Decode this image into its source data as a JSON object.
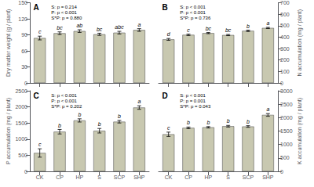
{
  "chart_data": [
    {
      "type": "bar",
      "title": "A",
      "annotations": [
        "S: p = 0.214\nP: p < 0.001\nS*P: p = 0.880"
      ],
      "ylabel": "Dry matter weight (g / plant)",
      "categories": [
        "CK",
        "CP",
        "HP",
        "S",
        "SCP",
        "SHP"
      ],
      "values": [
        84,
        93,
        97,
        91,
        94,
        99
      ],
      "errors": [
        3.5,
        2.5,
        2.5,
        2.0,
        2.5,
        2.5
      ],
      "letters": [
        "c",
        "bc",
        "ab",
        "bc",
        "abc",
        "a"
      ],
      "color": "#c8c8b0",
      "ylim": [
        0,
        150
      ],
      "yticks": [
        0,
        30,
        60,
        90,
        120,
        150
      ],
      "grid": false,
      "tick_labels": "y"
    },
    {
      "type": "bar",
      "title": "B",
      "annotations": [
        "S: p < 0.001\nP: p < 0.001\nS*P: p = 0.736"
      ],
      "ylabel": "N accumulation (mg / plant)",
      "categories": [
        "CK",
        "CP",
        "HP",
        "S",
        "SCP",
        "SHP"
      ],
      "values": [
        380,
        420,
        435,
        418,
        455,
        480
      ],
      "errors": [
        8,
        6,
        5,
        5,
        6,
        5
      ],
      "letters": [
        "d",
        "c",
        "bc",
        "bc",
        "b",
        "a"
      ],
      "color": "#c8c8b0",
      "ylim": [
        0,
        700
      ],
      "yticks": [
        0,
        100,
        200,
        300,
        400,
        500,
        600,
        700
      ],
      "grid": false,
      "tick_labels": "y"
    },
    {
      "type": "bar",
      "title": "C",
      "annotations": [
        "S: p < 0.001\nP: p < 0.001\nS*P: p = 0.202"
      ],
      "ylabel": "P accumulation (mg / plant)",
      "categories": [
        "CK",
        "CP",
        "HP",
        "S",
        "SCP",
        "SHP"
      ],
      "values": [
        570,
        1230,
        1580,
        1260,
        1540,
        1980
      ],
      "errors": [
        130,
        70,
        50,
        70,
        40,
        55
      ],
      "letters": [
        "c",
        "b",
        "b",
        "b",
        "b",
        "a"
      ],
      "color": "#c8c8b0",
      "ylim": [
        0,
        2500
      ],
      "yticks": [
        0,
        500,
        1000,
        1500,
        2000,
        2500
      ],
      "grid": false
    },
    {
      "type": "bar",
      "title": "D",
      "annotations": [
        "S: p < 0.001\nP: p = 0.001\nS*P: p = 0.043"
      ],
      "ylabel": "K accumulation (mg / plant)",
      "categories": [
        "CK",
        "CP",
        "HP",
        "S",
        "SCP",
        "SHP"
      ],
      "values": [
        1380,
        1620,
        1640,
        1680,
        1670,
        2100
      ],
      "errors": [
        80,
        30,
        25,
        30,
        30,
        50
      ],
      "letters": [
        "c",
        "b",
        "b",
        "b",
        "b",
        "a"
      ],
      "color": "#c8c8b0",
      "ylim": [
        0,
        3000
      ],
      "yticks": [
        0,
        500,
        1000,
        1500,
        2000,
        2500,
        3000
      ],
      "grid": false
    }
  ]
}
